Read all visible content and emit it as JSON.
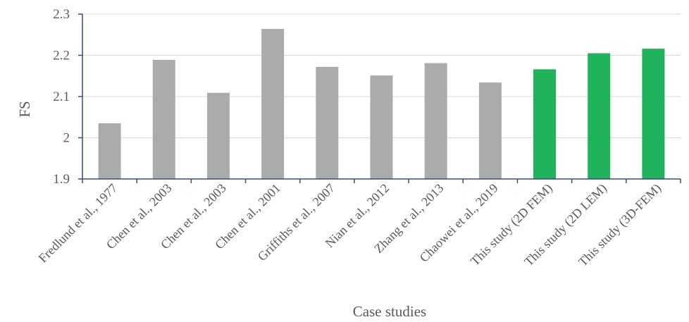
{
  "chart_data": {
    "type": "bar",
    "title": "",
    "xlabel": "Case studies",
    "ylabel": "FS",
    "ylim": [
      1.9,
      2.3
    ],
    "yticks": [
      "1.9",
      "2",
      "2.1",
      "2.2",
      "2.3"
    ],
    "grid": true,
    "categories": [
      "Fredlund et al., 1977",
      "Chen et al., 2003",
      "Chen et al., 2003",
      "Chen et al., 2001",
      "Griffiths et al., 2007",
      "Nian et al., 2012",
      "Zhang et al., 2013",
      "Chaowei et al., 2019",
      "This study (2D FEM)",
      "This study (2D LEM)",
      "This study (3D-FEM)"
    ],
    "values": [
      2.035,
      2.189,
      2.109,
      2.264,
      2.172,
      2.151,
      2.181,
      2.134,
      2.166,
      2.205,
      2.216
    ],
    "colors": {
      "literature": "#a9abad",
      "this_study": "#21b25c",
      "axis": "#3b4a7a",
      "grid": "#d9d9d9"
    }
  }
}
